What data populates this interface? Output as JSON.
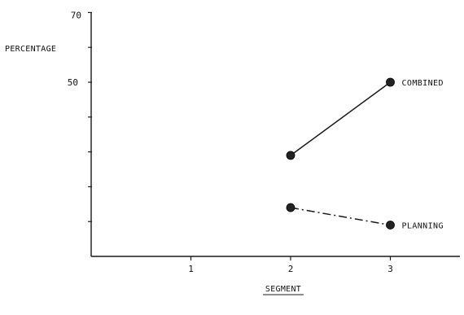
{
  "chart_data": {
    "type": "line",
    "ylabel": "PERCENTAGE",
    "xlabel": "SEGMENT",
    "x_ticks": [
      "1",
      "2",
      "3"
    ],
    "y_ticks_labeled": [
      "50",
      "70"
    ],
    "y_tick_label_top_as_printed": "70",
    "ylim": [
      0,
      70
    ],
    "xlim": [
      0,
      3.6
    ],
    "grid": false,
    "series": [
      {
        "name": "COMBINED",
        "x": [
          2,
          3
        ],
        "y": [
          29,
          50
        ],
        "line_style": "solid"
      },
      {
        "name": "PLANNING",
        "x": [
          2,
          3
        ],
        "y": [
          14,
          9
        ],
        "line_style": "dash-dot"
      }
    ]
  }
}
